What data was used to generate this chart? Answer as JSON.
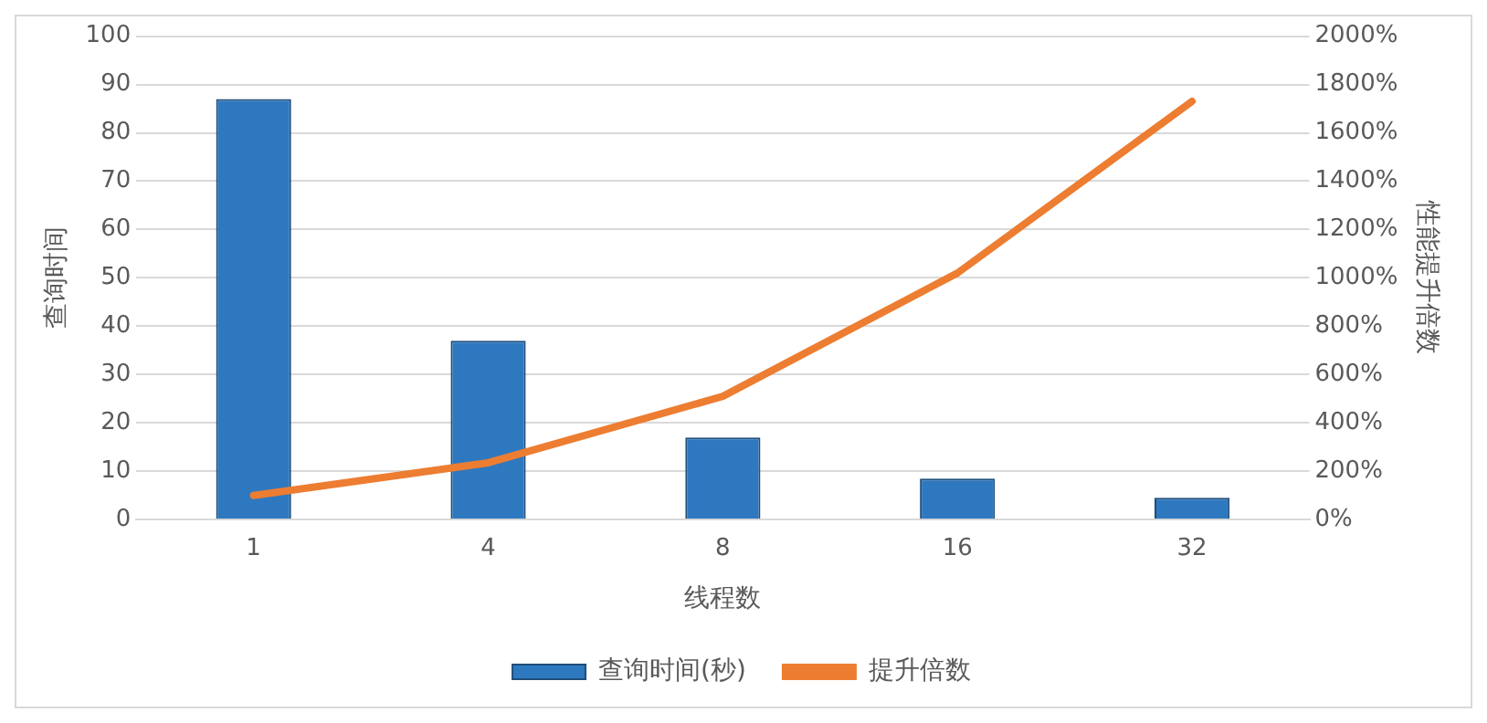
{
  "chart_data": {
    "type": "bar",
    "xlabel": "线程数",
    "ylabel": "查询时间",
    "y2label": "性能提升倍数",
    "categories": [
      "1",
      "4",
      "8",
      "16",
      "32"
    ],
    "series": [
      {
        "name": "查询时间(秒)",
        "color": "#2e78c0",
        "values": [
          87,
          37,
          17,
          8.5,
          4.5
        ]
      },
      {
        "name": "提升倍数",
        "type": "line",
        "axis": "y2",
        "color": "#ed7d31",
        "values": [
          100,
          235,
          510,
          1020,
          1730
        ]
      }
    ],
    "ylim": [
      0,
      100
    ],
    "yticks": [
      0,
      10,
      20,
      30,
      40,
      50,
      60,
      70,
      80,
      90,
      100
    ],
    "y2lim": [
      0,
      2000
    ],
    "y2ticks": [
      {
        "value": 0,
        "label": "0%"
      },
      {
        "value": 200,
        "label": "200%"
      },
      {
        "value": 400,
        "label": "400%"
      },
      {
        "value": 600,
        "label": "600%"
      },
      {
        "value": 800,
        "label": "800%"
      },
      {
        "value": 1000,
        "label": "1000%"
      },
      {
        "value": 1200,
        "label": "1200%"
      },
      {
        "value": 1400,
        "label": "1400%"
      },
      {
        "value": 1600,
        "label": "1600%"
      },
      {
        "value": 1800,
        "label": "1800%"
      },
      {
        "value": 2000,
        "label": "2000%"
      }
    ],
    "grid": "y",
    "legend": "bottom",
    "marker": "none",
    "line_style": "solid"
  }
}
